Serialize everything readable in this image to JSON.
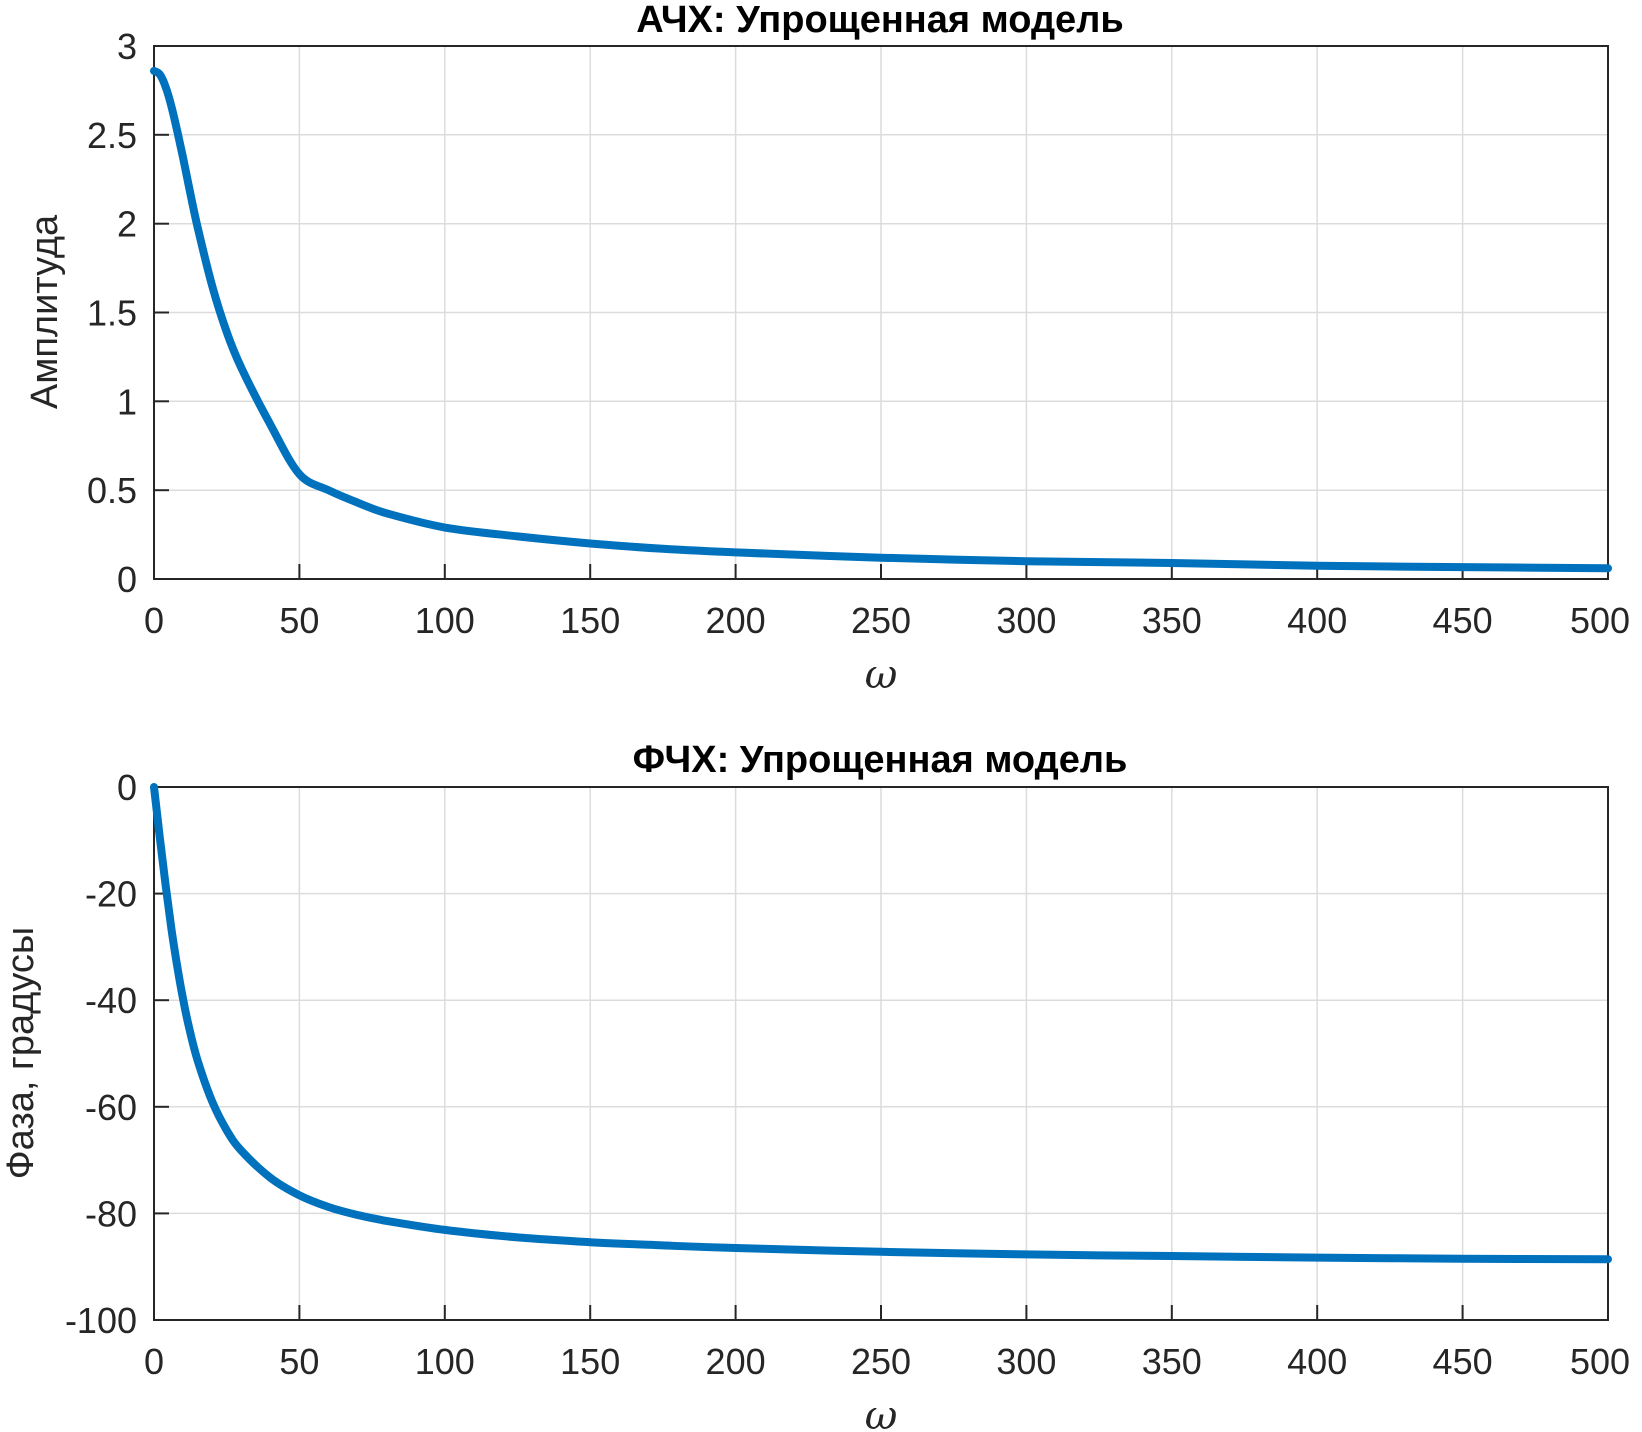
{
  "chart_data": [
    {
      "type": "line",
      "title": "АЧХ: Упрощенная модель",
      "xlabel": "ω",
      "ylabel": "Амплитуда",
      "xlim": [
        0,
        500
      ],
      "ylim": [
        0,
        3
      ],
      "x_ticks": [
        "0",
        "50",
        "100",
        "150",
        "200",
        "250",
        "300",
        "350",
        "400",
        "450",
        "500"
      ],
      "y_ticks": [
        "3",
        "2.5",
        "2",
        "1.5",
        "1",
        "0.5",
        "0"
      ],
      "grid": true,
      "color": "#0072bd",
      "series": [
        {
          "x": [
            0,
            2,
            4,
            6,
            8,
            10,
            12,
            15,
            20,
            25,
            30,
            40,
            50,
            60,
            70,
            80,
            100,
            125,
            150,
            175,
            200,
            250,
            300,
            350,
            400,
            450,
            500
          ],
          "y": [
            2.86,
            2.84,
            2.77,
            2.66,
            2.52,
            2.37,
            2.21,
            1.98,
            1.65,
            1.39,
            1.19,
            0.87,
            0.59,
            0.5,
            0.43,
            0.37,
            0.29,
            0.24,
            0.2,
            0.17,
            0.15,
            0.12,
            0.1,
            0.09,
            0.075,
            0.067,
            0.06
          ]
        }
      ]
    },
    {
      "type": "line",
      "title": "ФЧХ: Упрощенная модель",
      "xlabel": "ω",
      "ylabel": "Фаза, градусы",
      "xlim": [
        0,
        500
      ],
      "ylim": [
        -100,
        0
      ],
      "x_ticks": [
        "0",
        "50",
        "100",
        "150",
        "200",
        "250",
        "300",
        "350",
        "400",
        "450",
        "500"
      ],
      "y_ticks": [
        "0",
        "-20",
        "-40",
        "-60",
        "-80",
        "-100"
      ],
      "grid": true,
      "color": "#0072bd",
      "series": [
        {
          "x": [
            0,
            2,
            4,
            6,
            8,
            10,
            12,
            15,
            20,
            25,
            30,
            40,
            50,
            60,
            70,
            80,
            100,
            125,
            150,
            175,
            200,
            250,
            300,
            350,
            400,
            450,
            500
          ],
          "y": [
            0,
            -9.5,
            -18.4,
            -26.6,
            -33.7,
            -39.8,
            -45.0,
            -51.3,
            -59.0,
            -64.4,
            -68.2,
            -73.3,
            -76.6,
            -78.8,
            -80.3,
            -81.4,
            -83.1,
            -84.5,
            -85.4,
            -86.0,
            -86.5,
            -87.2,
            -87.7,
            -88.0,
            -88.3,
            -88.5,
            -88.6
          ]
        }
      ]
    }
  ]
}
